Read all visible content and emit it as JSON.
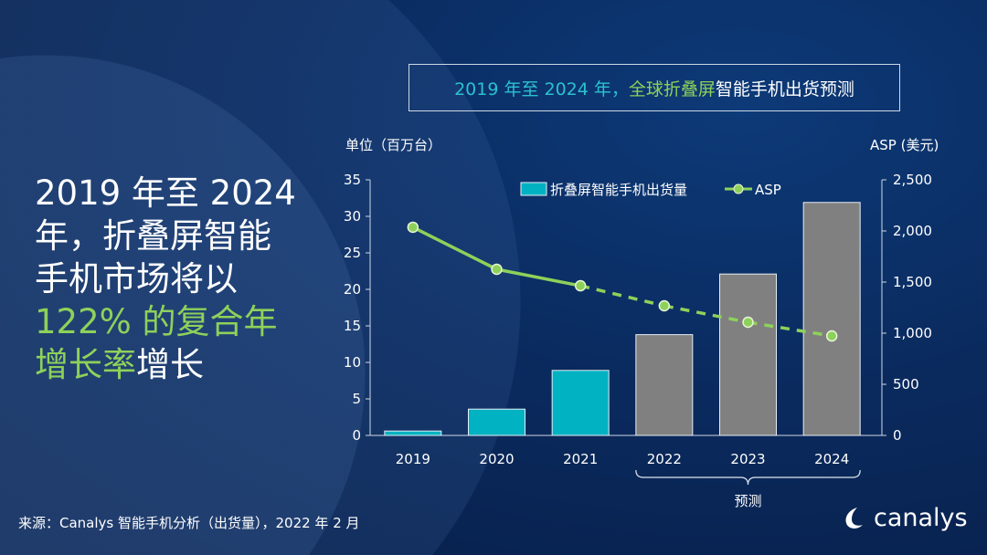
{
  "headline": {
    "line1": "2019 年至 2024",
    "line2": "年，折叠屏智能",
    "line3": "手机市场将以",
    "line4_green": "122% 的复合年",
    "line5_green": "增长率",
    "line5_white": "增长"
  },
  "chart_title": {
    "part1": "2019 年至 2024 年，",
    "part2": "全球折叠屏",
    "part3": "智能手机出货预测"
  },
  "colors": {
    "actual_bar": "#00b2c2",
    "forecast_bar": "#808080",
    "asp_line": "#8ed15a",
    "background": "#0a2a5e"
  },
  "chart_data": {
    "type": "bar",
    "categories": [
      "2019",
      "2020",
      "2021",
      "2022",
      "2023",
      "2024"
    ],
    "series": [
      {
        "name": "折叠屏智能手机出货量",
        "type": "bar",
        "axis": "left",
        "values": [
          0.6,
          3.6,
          8.9,
          13.8,
          22.1,
          31.9
        ]
      },
      {
        "name": "ASP",
        "type": "line",
        "axis": "right",
        "values": [
          2036,
          1625,
          1464,
          1268,
          1107,
          973
        ],
        "dashed_from": "2021"
      }
    ],
    "forecast_categories": [
      "2022",
      "2023",
      "2024"
    ],
    "forecast_label": "预测",
    "ylabel": "单位（百万台）",
    "y2label": "ASP (美元)",
    "ylim": [
      0,
      35
    ],
    "y2lim": [
      0,
      2500
    ],
    "yticks": [
      "0",
      "5",
      "10",
      "15",
      "20",
      "25",
      "30",
      "35"
    ],
    "y2ticks": [
      "0",
      "500",
      "1,000",
      "1,500",
      "2,000",
      "2,500"
    ],
    "legend": "top-center",
    "grid": false
  },
  "source": "来源：Canalys 智能手机分析（出货量），2022 年 2 月",
  "logo": "canalys"
}
